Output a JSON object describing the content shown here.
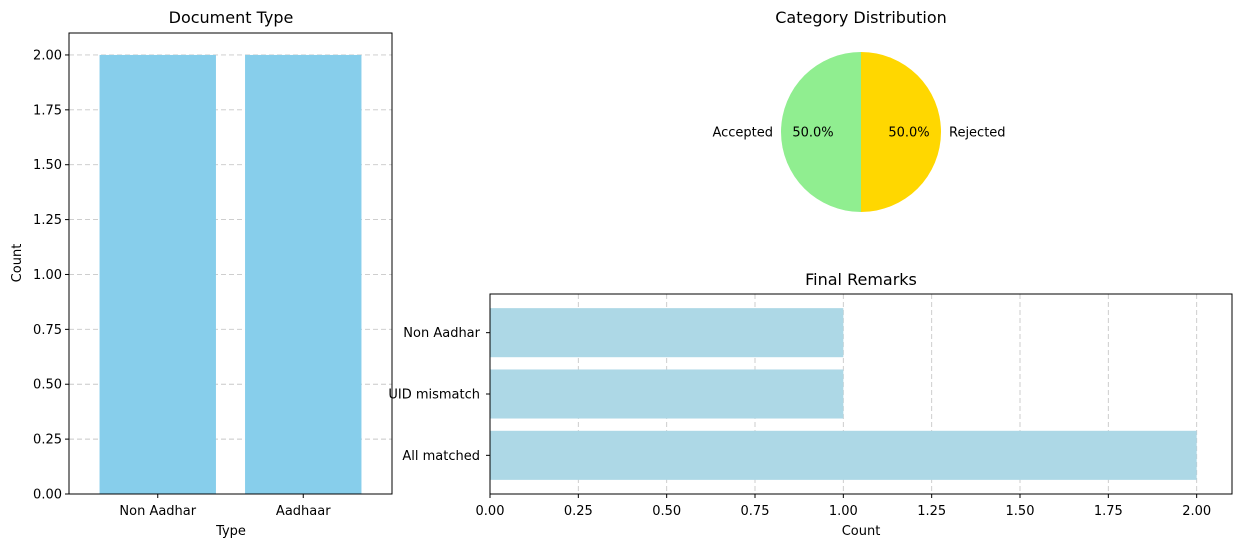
{
  "chart_data": [
    {
      "type": "bar",
      "title": "Document Type",
      "xlabel": "Type",
      "ylabel": "Count",
      "categories": [
        "Non Aadhar",
        "Aadhaar"
      ],
      "values": [
        2,
        2
      ],
      "ylim": [
        0,
        2.1
      ],
      "yticks": [
        "0.00",
        "0.25",
        "0.50",
        "0.75",
        "1.00",
        "1.25",
        "1.50",
        "1.75",
        "2.00"
      ],
      "grid": "y",
      "color": "#87CEEB"
    },
    {
      "type": "pie",
      "title": "Category Distribution",
      "labels": [
        "Accepted",
        "Rejected"
      ],
      "values": [
        50.0,
        50.0
      ],
      "percent_labels": [
        "50.0%",
        "50.0%"
      ],
      "colors": [
        "#90EE90",
        "#FFD700"
      ]
    },
    {
      "type": "bar",
      "orientation": "horizontal",
      "title": "Final Remarks",
      "xlabel": "Count",
      "categories": [
        "All matched",
        "UID mismatch",
        "Non Aadhar"
      ],
      "values": [
        2,
        1,
        1
      ],
      "xlim": [
        0,
        2.1
      ],
      "xticks": [
        "0.00",
        "0.25",
        "0.50",
        "0.75",
        "1.00",
        "1.25",
        "1.50",
        "1.75",
        "2.00"
      ],
      "grid": "x",
      "color": "#ADD8E6"
    }
  ]
}
